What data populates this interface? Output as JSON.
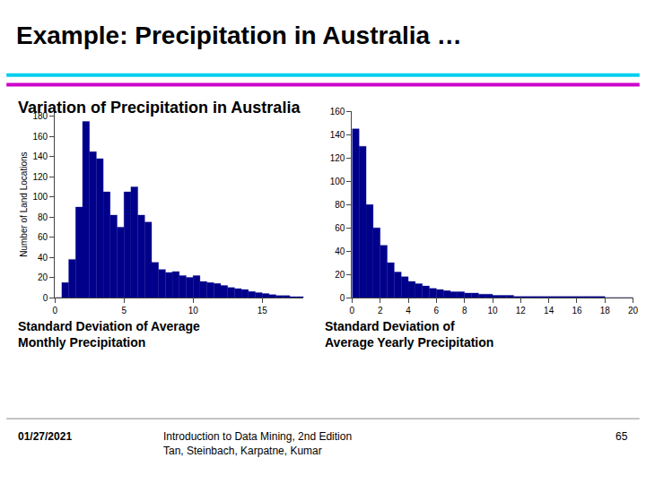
{
  "title": "Example: Precipitation in Australia …",
  "subtitle": "Variation of Precipitation in Australia",
  "annotations": [
    "01/27/2021",
    "Introduction to Data Mining, 2nd Edition\nTan, Steinbach, Karpatne, Kumar",
    "65"
  ],
  "chart_data": [
    {
      "type": "histogram",
      "bins": [
        0,
        0.5,
        1.0,
        1.5,
        2.0,
        2.5,
        3.0,
        3.5,
        4.0,
        4.5,
        5.0,
        5.5,
        6.0,
        6.5,
        7.0,
        7.5,
        8.0,
        8.5,
        9.0,
        9.5,
        10.0,
        10.5,
        11.0,
        11.5,
        12.0,
        12.5,
        13.0,
        13.5,
        14.0,
        14.5,
        15.0,
        15.5,
        16.0,
        16.5,
        17.0,
        17.5,
        18.0
      ],
      "values": [
        0,
        15,
        38,
        90,
        175,
        145,
        138,
        105,
        82,
        70,
        105,
        110,
        82,
        75,
        35,
        28,
        25,
        26,
        22,
        20,
        22,
        16,
        15,
        14,
        12,
        10,
        9,
        8,
        6,
        5,
        4,
        3,
        2,
        2,
        1,
        1
      ],
      "color": "#00008B",
      "xlabel": "Standard Deviation of Average\nMonthly Precipitation",
      "ylabel": "Number of Land Locations",
      "xlim": [
        0,
        18
      ],
      "xticks": [
        0,
        5,
        10,
        15
      ],
      "ylim": [
        0,
        185
      ],
      "yticks": [
        0,
        20,
        40,
        60,
        80,
        100,
        120,
        140,
        160,
        180
      ],
      "grid": false
    },
    {
      "type": "histogram",
      "bins": [
        0,
        0.5,
        1.0,
        1.5,
        2.0,
        2.5,
        3.0,
        3.5,
        4.0,
        4.5,
        5.0,
        5.5,
        6.0,
        6.5,
        7.0,
        7.5,
        8.0,
        8.5,
        9.0,
        9.5,
        10.0,
        10.5,
        11.0,
        11.5,
        12.0,
        12.5,
        13.0,
        13.5,
        14.0,
        14.5,
        15.0,
        15.5,
        16.0,
        16.5,
        17.0,
        17.5,
        18.0,
        18.5,
        19.0,
        19.5,
        20.0
      ],
      "values": [
        145,
        130,
        80,
        60,
        45,
        30,
        22,
        18,
        14,
        12,
        10,
        8,
        7,
        6,
        5,
        5,
        4,
        4,
        3,
        3,
        2,
        2,
        2,
        1,
        1,
        1,
        1,
        1,
        1,
        1,
        1,
        1,
        1,
        1,
        1,
        1,
        0,
        0,
        0,
        0
      ],
      "color": "#00008B",
      "xlabel": "Standard Deviation of\nAverage Yearly Precipitation",
      "xlim": [
        0,
        20
      ],
      "xticks": [
        0,
        2,
        4,
        6,
        8,
        10,
        12,
        14,
        16,
        18,
        20
      ],
      "ylim": [
        0,
        160
      ],
      "yticks": [
        0,
        20,
        40,
        60,
        80,
        100,
        120,
        140,
        160
      ],
      "grid": false
    }
  ]
}
